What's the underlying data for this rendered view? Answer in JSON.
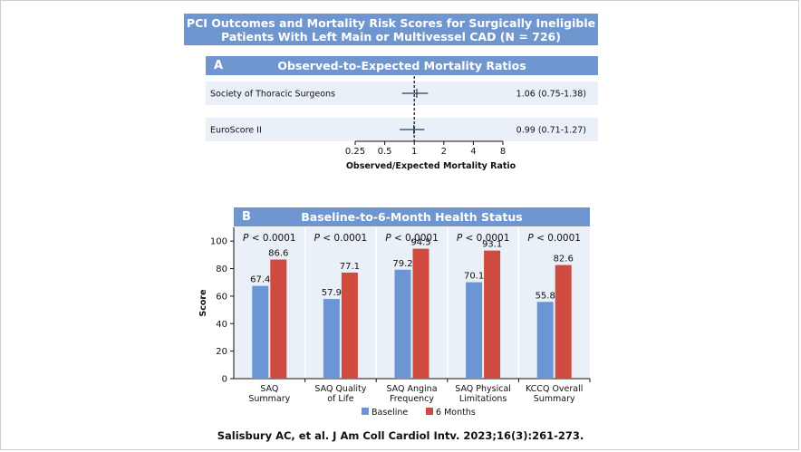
{
  "title_line1": "PCI Outcomes and Mortality Risk Scores for Surgically Ineligible",
  "title_line2": "Patients With Left Main or Multivessel CAD (N = 726)",
  "citation": "Salisbury AC, et al. J Am Coll Cardiol Intv. 2023;16(3):261-273.",
  "colors": {
    "header": "#6f96cf",
    "band": "#eaf0f8",
    "baseline": "#6b95d3",
    "six_months": "#cf4a3f"
  },
  "chart_data": [
    {
      "type": "forest",
      "panel_letter": "A",
      "title": "Observed-to-Expected Mortality Ratios",
      "xlabel": "Observed/Expected Mortality Ratio",
      "x_scale": "log2",
      "xlim": [
        0.25,
        8
      ],
      "reference_line": 1,
      "x_ticks": [
        0.25,
        0.5,
        1,
        2,
        4,
        8
      ],
      "x_tick_labels": [
        "0.25",
        "0.5",
        "1",
        "2",
        "4",
        "8"
      ],
      "rows": [
        {
          "label": "Society of Thoracic Surgeons",
          "estimate": 1.06,
          "ci_low": 0.75,
          "ci_high": 1.38,
          "text": "1.06 (0.75-1.38)"
        },
        {
          "label": "EuroScore II",
          "estimate": 0.99,
          "ci_low": 0.71,
          "ci_high": 1.27,
          "text": "0.99 (0.71-1.27)"
        }
      ]
    },
    {
      "type": "bar",
      "panel_letter": "B",
      "title": "Baseline-to-6-Month Health Status",
      "ylabel": "Score",
      "ylim": [
        0,
        110
      ],
      "y_ticks": [
        0,
        20,
        40,
        60,
        80,
        100
      ],
      "y_tick_labels": [
        "0",
        "20",
        "40",
        "60",
        "80",
        "100"
      ],
      "categories": [
        [
          "SAQ",
          "Summary"
        ],
        [
          "SAQ Quality",
          "of Life"
        ],
        [
          "SAQ Angina",
          "Frequency"
        ],
        [
          "SAQ Physical",
          "Limitations"
        ],
        [
          "KCCQ Overall",
          "Summary"
        ]
      ],
      "p_prefix": "P",
      "p_values": [
        "< 0.0001",
        "< 0.0001",
        "< 0.0001",
        "< 0.0001",
        "< 0.0001"
      ],
      "series": [
        {
          "name": "Baseline",
          "values": [
            67.4,
            57.9,
            79.2,
            70.1,
            55.8
          ],
          "labels": [
            "67.4",
            "57.9",
            "79.2",
            "70.1",
            "55.8"
          ]
        },
        {
          "name": "6 Months",
          "values": [
            86.6,
            77.1,
            94.5,
            93.1,
            82.6
          ],
          "labels": [
            "86.6",
            "77.1",
            "94.5",
            "93.1",
            "82.6"
          ]
        }
      ],
      "legend_position": "bottom"
    }
  ]
}
